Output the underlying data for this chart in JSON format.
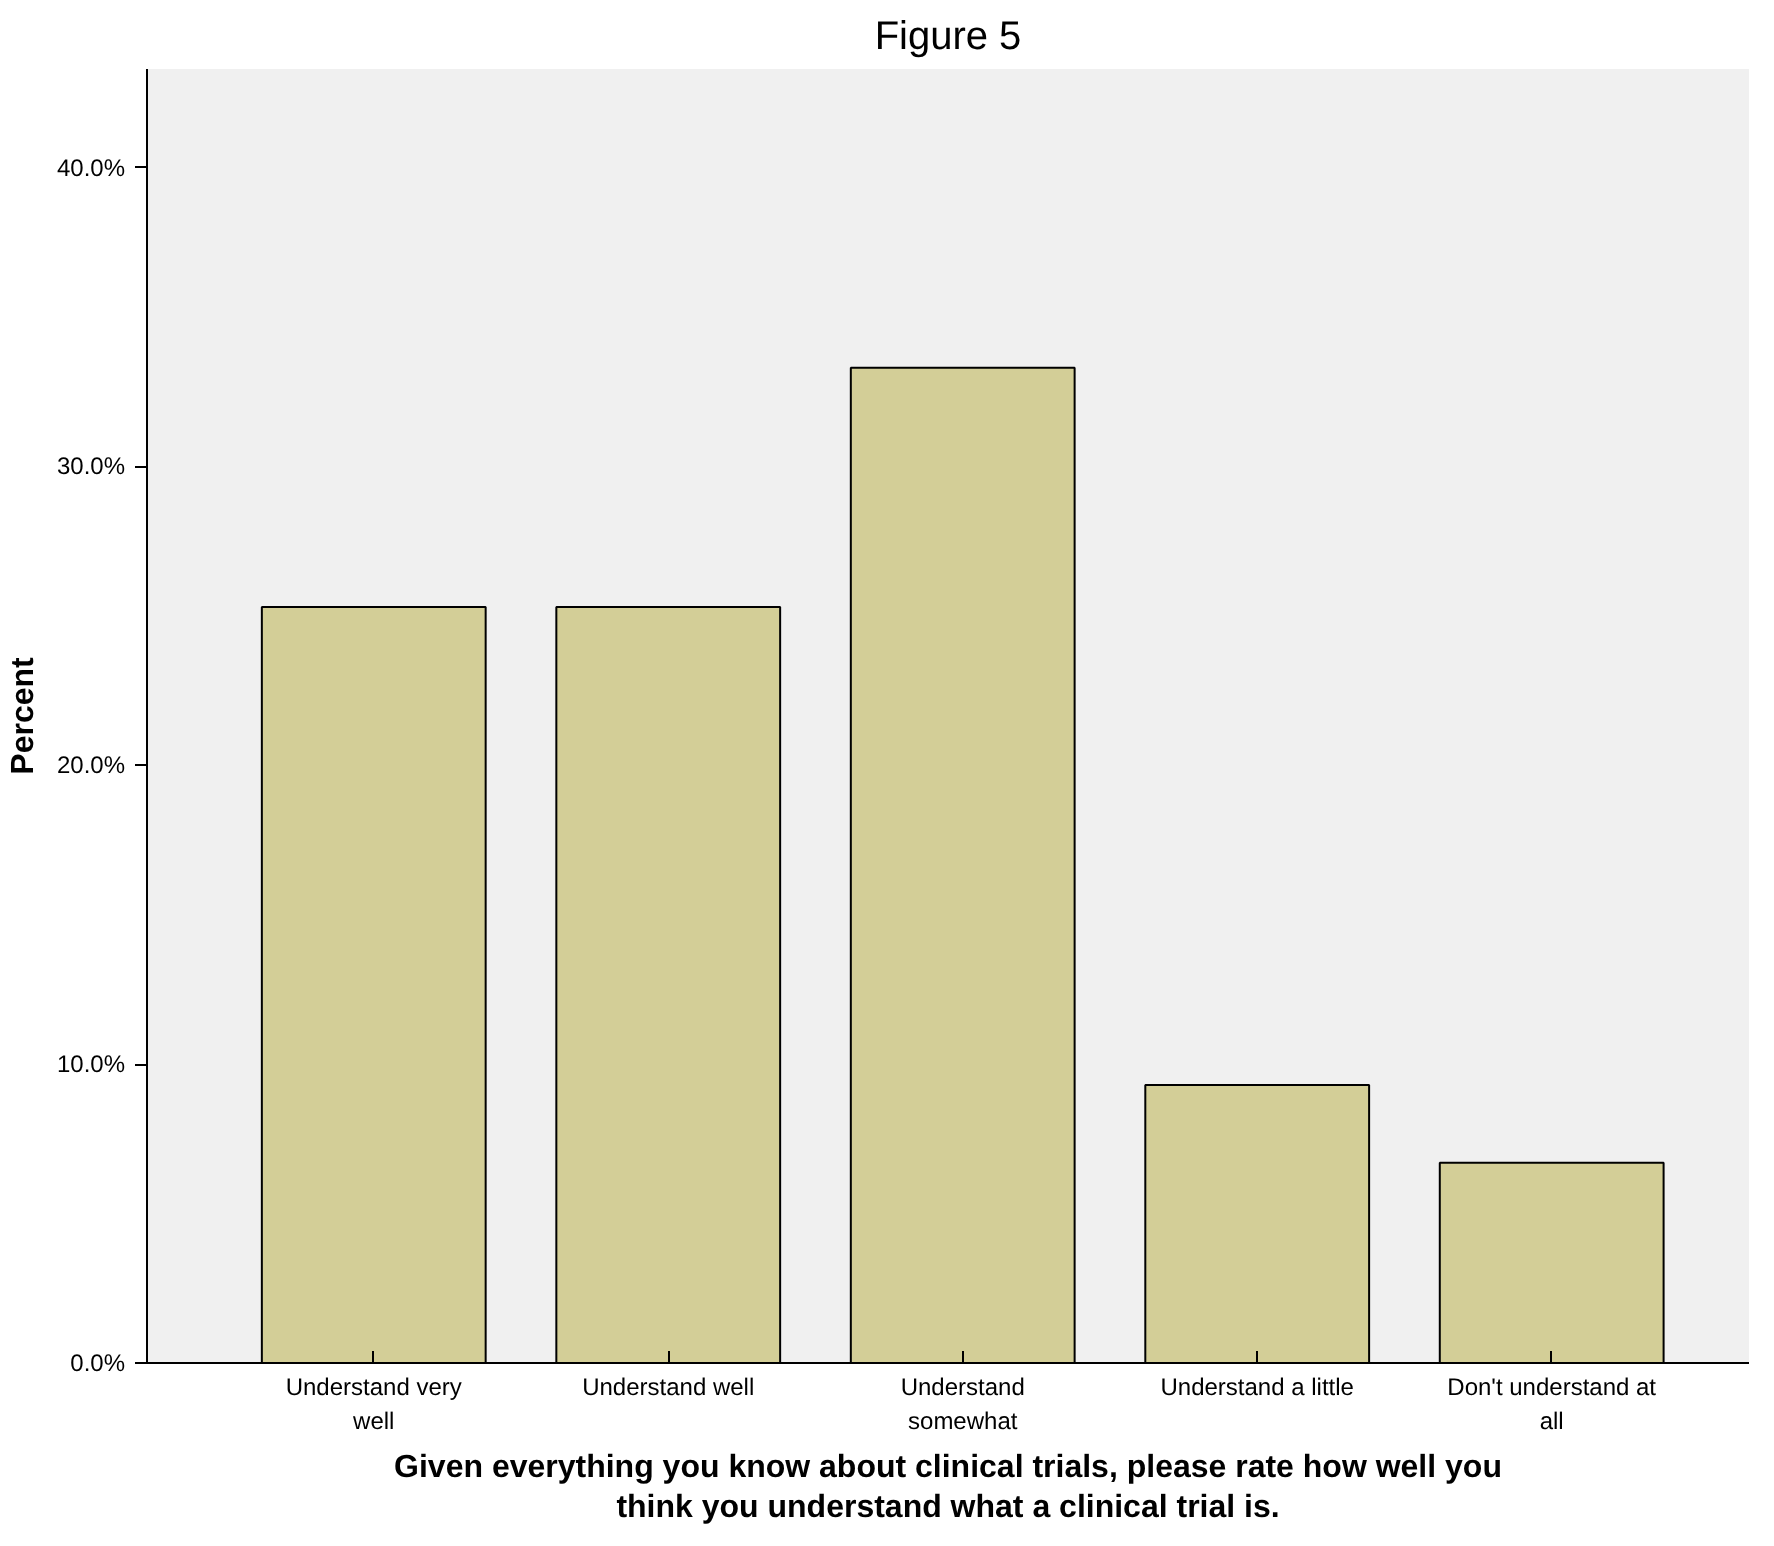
{
  "chart_data": {
    "type": "bar",
    "title": "Figure 5",
    "xlabel": "Given everything you know about clinical trials, please rate how well you think you understand what a clinical trial is.",
    "ylabel": "Percent",
    "categories": [
      "Understand very\nwell",
      "Understand well",
      "Understand\nsomewhat",
      "Understand a little",
      "Don't understand at\nall"
    ],
    "values": [
      25.3,
      25.3,
      33.3,
      9.3,
      6.7
    ],
    "color": "#d3ce97",
    "ylim": [
      0,
      43.3
    ],
    "yticks": [
      {
        "value": 0,
        "label": "0.0%"
      },
      {
        "value": 10,
        "label": "10.0%"
      },
      {
        "value": 20,
        "label": "20.0%"
      },
      {
        "value": 30,
        "label": "30.0%"
      },
      {
        "value": 40,
        "label": "40.0%"
      }
    ],
    "grid": false
  }
}
